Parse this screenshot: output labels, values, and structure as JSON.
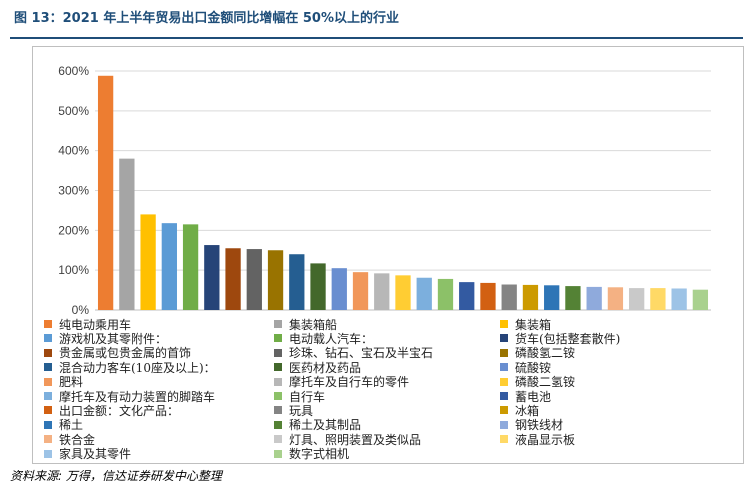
{
  "title": "图 13：2021 年上半年贸易出口金额同比增幅在 50%以上的行业",
  "source": "资料来源: 万得，信达证券研发中心整理",
  "chart_data": {
    "type": "bar",
    "ylim": [
      0,
      600
    ],
    "yticks": [
      "0%",
      "100%",
      "200%",
      "300%",
      "400%",
      "500%",
      "600%"
    ],
    "grid": true,
    "legend_position": "bottom",
    "series": [
      {
        "name": "纯电动乘用车",
        "value": 588,
        "color": "#ed7d31"
      },
      {
        "name": "集装箱船",
        "value": 380,
        "color": "#a5a5a5"
      },
      {
        "name": "集装箱",
        "value": 240,
        "color": "#ffc000"
      },
      {
        "name": "游戏机及其零附件：",
        "value": 218,
        "color": "#5b9bd5"
      },
      {
        "name": "电动载人汽车：",
        "value": 215,
        "color": "#70ad47"
      },
      {
        "name": "货车(包括整套散件)",
        "value": 163,
        "color": "#264478"
      },
      {
        "name": "贵金属或包贵金属的首饰",
        "value": 155,
        "color": "#9e480e"
      },
      {
        "name": "珍珠、钻石、宝石及半宝石",
        "value": 153,
        "color": "#636363"
      },
      {
        "name": "磷酸氢二铵",
        "value": 150,
        "color": "#997300"
      },
      {
        "name": "混合动力客车(10座及以上)：",
        "value": 140,
        "color": "#255e91"
      },
      {
        "name": "医药材及药品",
        "value": 117,
        "color": "#43682b"
      },
      {
        "name": "硫酸铵",
        "value": 105,
        "color": "#698ed0"
      },
      {
        "name": "肥料",
        "value": 95,
        "color": "#f1975a"
      },
      {
        "name": "摩托车及自行车的零件",
        "value": 92,
        "color": "#b7b7b7"
      },
      {
        "name": "磷酸二氢铵",
        "value": 87,
        "color": "#ffcd33"
      },
      {
        "name": "摩托车及有动力装置的脚踏车",
        "value": 81,
        "color": "#7cafdd"
      },
      {
        "name": "自行车",
        "value": 78,
        "color": "#8cc168"
      },
      {
        "name": "蓄电池",
        "value": 70,
        "color": "#335aa1"
      },
      {
        "name": "出口金额：文化产品：",
        "value": 68,
        "color": "#d26012"
      },
      {
        "name": "玩具",
        "value": 64,
        "color": "#848484"
      },
      {
        "name": "冰箱",
        "value": 63,
        "color": "#cc9a00"
      },
      {
        "name": "稀土",
        "value": 62,
        "color": "#2e75b6"
      },
      {
        "name": "稀土及其制品",
        "value": 60,
        "color": "#548235"
      },
      {
        "name": "钢铁线材",
        "value": 58,
        "color": "#8faadc"
      },
      {
        "name": "铁合金",
        "value": 57,
        "color": "#f4b183"
      },
      {
        "name": "灯具、照明装置及类似品",
        "value": 55,
        "color": "#c9c9c9"
      },
      {
        "name": "液晶显示板",
        "value": 55,
        "color": "#ffd966"
      },
      {
        "name": "家具及其零件",
        "value": 54,
        "color": "#9dc3e6"
      },
      {
        "name": "数字式相机",
        "value": 51,
        "color": "#a9d18e"
      }
    ]
  }
}
